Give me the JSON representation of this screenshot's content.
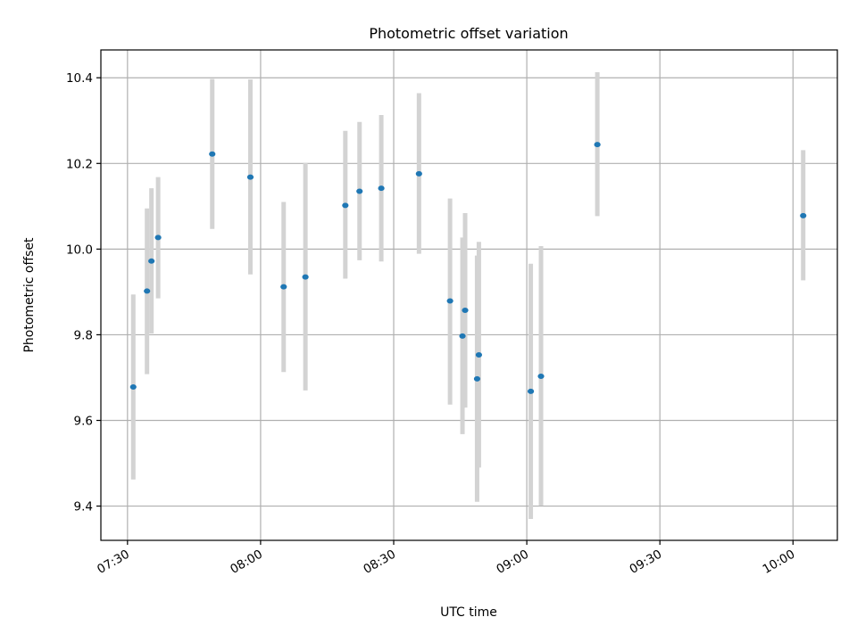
{
  "chart_data": {
    "type": "scatter",
    "title": "Photometric offset variation",
    "xlabel": "UTC time",
    "ylabel": "Photometric offset",
    "xlim": [
      "07:24",
      "10:10"
    ],
    "ylim": [
      9.32,
      10.465
    ],
    "x_ticks": [
      "07:30",
      "08:00",
      "08:30",
      "09:00",
      "09:30",
      "10:00"
    ],
    "y_ticks": [
      9.4,
      9.6,
      9.8,
      10.0,
      10.2,
      10.4
    ],
    "y_tick_labels": [
      "9.4",
      "9.6",
      "9.8",
      "10.0",
      "10.2",
      "10.4"
    ],
    "grid": true,
    "marker_color": "#1f77b4",
    "errorbar_color": "#d3d3d3",
    "points": [
      {
        "time": "07:31:18",
        "y": 9.678,
        "ylow": 9.462,
        "yhigh": 9.894
      },
      {
        "time": "07:34:24",
        "y": 9.902,
        "ylow": 9.708,
        "yhigh": 10.095
      },
      {
        "time": "07:35:24",
        "y": 9.972,
        "ylow": 9.803,
        "yhigh": 10.142
      },
      {
        "time": "07:36:54",
        "y": 10.027,
        "ylow": 9.885,
        "yhigh": 10.168
      },
      {
        "time": "07:49:06",
        "y": 10.222,
        "ylow": 10.047,
        "yhigh": 10.397
      },
      {
        "time": "07:57:42",
        "y": 10.168,
        "ylow": 9.941,
        "yhigh": 10.396
      },
      {
        "time": "08:05:12",
        "y": 9.912,
        "ylow": 9.713,
        "yhigh": 10.11
      },
      {
        "time": "08:10:06",
        "y": 9.935,
        "ylow": 9.67,
        "yhigh": 10.201
      },
      {
        "time": "08:19:06",
        "y": 10.102,
        "ylow": 9.931,
        "yhigh": 10.276
      },
      {
        "time": "08:22:18",
        "y": 10.135,
        "ylow": 9.974,
        "yhigh": 10.297
      },
      {
        "time": "08:27:12",
        "y": 10.142,
        "ylow": 9.971,
        "yhigh": 10.313
      },
      {
        "time": "08:35:42",
        "y": 10.176,
        "ylow": 9.989,
        "yhigh": 10.364
      },
      {
        "time": "08:42:42",
        "y": 9.879,
        "ylow": 9.637,
        "yhigh": 10.118
      },
      {
        "time": "08:45:30",
        "y": 9.797,
        "ylow": 9.568,
        "yhigh": 10.027
      },
      {
        "time": "08:46:06",
        "y": 9.857,
        "ylow": 9.63,
        "yhigh": 10.084
      },
      {
        "time": "08:48:48",
        "y": 9.697,
        "ylow": 9.41,
        "yhigh": 9.985
      },
      {
        "time": "08:49:12",
        "y": 9.753,
        "ylow": 9.49,
        "yhigh": 10.017
      },
      {
        "time": "09:00:54",
        "y": 9.668,
        "ylow": 9.37,
        "yhigh": 9.966
      },
      {
        "time": "09:03:12",
        "y": 9.703,
        "ylow": 9.401,
        "yhigh": 10.007
      },
      {
        "time": "09:15:54",
        "y": 10.244,
        "ylow": 10.077,
        "yhigh": 10.413
      },
      {
        "time": "10:02:18",
        "y": 10.078,
        "ylow": 9.927,
        "yhigh": 10.231
      }
    ]
  }
}
